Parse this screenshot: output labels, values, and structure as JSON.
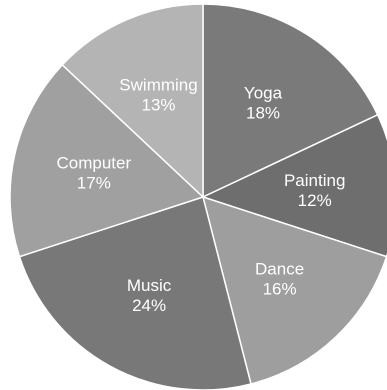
{
  "chart_data": {
    "type": "pie",
    "title": "",
    "slices": [
      {
        "label": "Yoga",
        "value": 18,
        "display": "18%",
        "color": "#7a7a7a"
      },
      {
        "label": "Painting",
        "value": 12,
        "display": "12%",
        "color": "#6e6e6e"
      },
      {
        "label": "Dance",
        "value": 16,
        "display": "16%",
        "color": "#9e9e9e"
      },
      {
        "label": "Music",
        "value": 24,
        "display": "24%",
        "color": "#787878"
      },
      {
        "label": "Computer",
        "value": 17,
        "display": "17%",
        "color": "#a0a0a0"
      },
      {
        "label": "Swimming",
        "value": 13,
        "display": "13%",
        "color": "#b4b4b4"
      }
    ],
    "start_position": "top (12 o'clock)",
    "direction": "clockwise",
    "slice_border_color": "#ffffff",
    "label_color": "#ffffff",
    "legend": "none"
  }
}
